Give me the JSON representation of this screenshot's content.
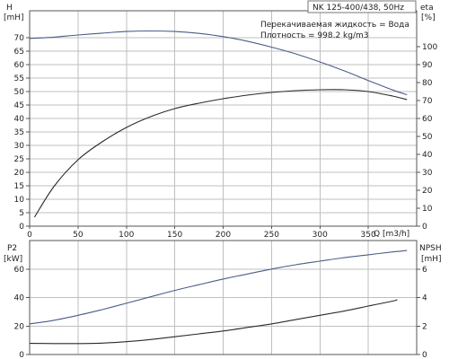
{
  "chart_data": [
    {
      "type": "line",
      "title": "NK 125-400/438, 50Hz",
      "annotations": [
        "Перекачиваемая жидкость = Вода",
        "Плотность = 998.2 kg/m3"
      ],
      "xlabel": "Q [m3/h]",
      "x_ticks": [
        "0",
        "50",
        "100",
        "150",
        "200",
        "250",
        "300",
        "350"
      ],
      "xlim": [
        0,
        400
      ],
      "left_axis": {
        "label_line1": "H",
        "label_line2": "[mH]",
        "ylim": [
          0,
          80
        ],
        "ticks": [
          "0",
          "5",
          "10",
          "15",
          "20",
          "25",
          "30",
          "35",
          "40",
          "45",
          "50",
          "55",
          "60",
          "65",
          "70"
        ]
      },
      "right_axis": {
        "label_line1": "eta",
        "label_line2": "[%]",
        "ylim": [
          0,
          120
        ],
        "ticks": [
          "0",
          "10",
          "20",
          "30",
          "40",
          "50",
          "60",
          "70",
          "80",
          "90",
          "100"
        ]
      },
      "grid": true,
      "series": [
        {
          "axis": "left",
          "color": "#4a5c86",
          "x": [
            0,
            25,
            50,
            75,
            100,
            125,
            150,
            175,
            200,
            225,
            250,
            275,
            300,
            325,
            350,
            375,
            390
          ],
          "y": [
            69.7,
            70.2,
            71.0,
            71.7,
            72.3,
            72.5,
            72.3,
            71.6,
            70.4,
            68.7,
            66.5,
            64.0,
            61.0,
            57.7,
            54.1,
            50.6,
            48.8
          ]
        },
        {
          "axis": "right",
          "color": "#2a2a2a",
          "x": [
            5,
            25,
            50,
            75,
            100,
            125,
            150,
            175,
            200,
            225,
            250,
            275,
            300,
            325,
            350,
            375,
            390
          ],
          "y": [
            5,
            22,
            37,
            47,
            55,
            61,
            65.5,
            68.5,
            71,
            73,
            74.5,
            75.5,
            76,
            76,
            75,
            72.5,
            70.5
          ]
        }
      ]
    },
    {
      "type": "line",
      "xlim": [
        0,
        400
      ],
      "left_axis": {
        "label_line1": "P2",
        "label_line2": "[kW]",
        "ylim": [
          0,
          80
        ],
        "ticks": [
          "0",
          "20",
          "40",
          "60"
        ]
      },
      "right_axis": {
        "label_line1": "NPSH",
        "label_line2": "[mH]",
        "ylim": [
          0,
          8
        ],
        "ticks": [
          "0",
          "2",
          "4",
          "6"
        ]
      },
      "grid": true,
      "series": [
        {
          "axis": "left",
          "color": "#4a5c86",
          "x": [
            0,
            25,
            50,
            75,
            100,
            125,
            150,
            175,
            200,
            225,
            250,
            275,
            300,
            325,
            350,
            375,
            390
          ],
          "y": [
            21.5,
            24,
            27.5,
            31.5,
            36,
            40.5,
            45,
            49,
            53,
            56.5,
            60,
            63,
            65.5,
            68,
            70,
            72,
            73
          ]
        },
        {
          "axis": "right",
          "color": "#2a2a2a",
          "x": [
            0,
            25,
            50,
            75,
            100,
            125,
            150,
            175,
            200,
            225,
            250,
            275,
            300,
            325,
            350,
            375,
            380
          ],
          "y": [
            0.78,
            0.77,
            0.77,
            0.8,
            0.9,
            1.05,
            1.25,
            1.45,
            1.65,
            1.9,
            2.15,
            2.45,
            2.75,
            3.05,
            3.4,
            3.75,
            3.85
          ]
        }
      ]
    }
  ]
}
